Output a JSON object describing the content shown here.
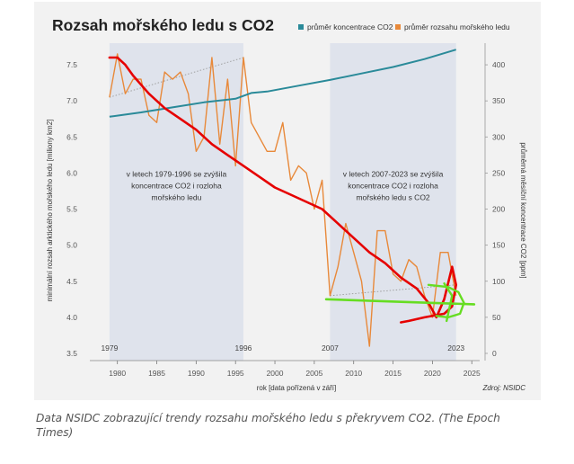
{
  "caption": "Data NSIDC zobrazující trendy rozsahu mořského ledu s překryvem CO2. (The Epoch Times)",
  "chart_data": {
    "type": "line",
    "title": "Rozsah mořského ledu s CO2",
    "xlabel": "rok [data pořízená v září]",
    "ylabel_left": "minimální rozsah arktického mořského ledu [miliony km2]",
    "ylabel_right": "průměrná měsíční koncentrace CO2 [ppm]",
    "source": "Zdroj: NSIDC",
    "xlim": [
      1976.5,
      2026
    ],
    "ylim_left": [
      3.4,
      7.8
    ],
    "ylim_right": [
      -10,
      430
    ],
    "x_ticks": [
      "1980",
      "1985",
      "1990",
      "1995",
      "2000",
      "2005",
      "2010",
      "2015",
      "2020",
      "2025"
    ],
    "y_ticks_left": [
      "3.5",
      "4.0",
      "4.5",
      "5.0",
      "5.5",
      "6.0",
      "6.5",
      "7.0",
      "7.5"
    ],
    "y_ticks_right": [
      "0",
      "50",
      "100",
      "150",
      "200",
      "250",
      "300",
      "350",
      "400"
    ],
    "legend": [
      {
        "name": "průměr koncentrace CO2",
        "color": "#2a8a99"
      },
      {
        "name": "průměr rozsahu mořského ledu",
        "color": "#e8893a"
      }
    ],
    "shaded_periods": [
      [
        1979,
        1996
      ],
      [
        2007,
        2023
      ]
    ],
    "period_labels": [
      "1979",
      "1996",
      "2007",
      "2023"
    ],
    "annotations": [
      {
        "x": 1987.5,
        "y": 5.95,
        "lines": [
          "v letech 1979-1996 se zvýšila",
          "koncentrace CO2 i rozloha",
          "mořského ledu"
        ]
      },
      {
        "x": 2015,
        "y": 5.95,
        "lines": [
          "v letech 2007-2023 se zvýšila",
          "koncentrace CO2 i rozloha",
          "mořského ledu s CO2"
        ]
      }
    ],
    "series": [
      {
        "name": "průměr rozsahu mořského ledu",
        "color": "#e8893a",
        "axis": "left",
        "x": [
          1979,
          1980,
          1981,
          1982,
          1983,
          1984,
          1985,
          1986,
          1987,
          1988,
          1989,
          1990,
          1991,
          1992,
          1993,
          1994,
          1995,
          1996,
          1997,
          1998,
          1999,
          2000,
          2001,
          2002,
          2003,
          2004,
          2005,
          2006,
          2007,
          2008,
          2009,
          2010,
          2011,
          2012,
          2013,
          2014,
          2015,
          2016,
          2017,
          2018,
          2019,
          2020,
          2021,
          2022,
          2023
        ],
        "values": [
          7.05,
          7.65,
          7.1,
          7.3,
          7.3,
          6.8,
          6.7,
          7.4,
          7.3,
          7.4,
          7.1,
          6.3,
          6.5,
          7.6,
          6.4,
          7.3,
          6.1,
          7.6,
          6.7,
          6.5,
          6.3,
          6.3,
          6.7,
          5.9,
          6.1,
          6.0,
          5.5,
          5.9,
          4.3,
          4.7,
          5.3,
          4.9,
          4.5,
          3.6,
          5.2,
          5.2,
          4.6,
          4.5,
          4.8,
          4.7,
          4.3,
          4.0,
          4.9,
          4.9,
          4.3
        ]
      },
      {
        "name": "průměr koncentrace CO2",
        "color": "#2a8a99",
        "axis": "right",
        "x": [
          1979,
          1983,
          1987,
          1991,
          1995,
          1997,
          1999,
          2003,
          2007,
          2011,
          2015,
          2019,
          2023
        ],
        "values": [
          328,
          334,
          341,
          348,
          353,
          361,
          363,
          371,
          379,
          388,
          397,
          408,
          421
        ]
      }
    ],
    "dotted_trends": [
      {
        "x": [
          1979,
          1996
        ],
        "y_left": [
          7.05,
          7.6
        ]
      },
      {
        "x": [
          2007,
          2023
        ],
        "y_left": [
          4.3,
          4.45
        ]
      }
    ],
    "hand_drawn_red_trend": {
      "color": "#e60000",
      "x": [
        1979,
        1980,
        1981,
        1982,
        1984,
        1986,
        1988,
        1990,
        1992,
        1994,
        1996,
        1998,
        2000,
        2002,
        2004,
        2006,
        2008,
        2010,
        2012,
        2014,
        2016,
        2018,
        2019.5,
        2020.5,
        2021.5,
        2022.5,
        2023,
        2022.5,
        2021.5,
        2019,
        2017,
        2016
      ],
      "values": [
        7.6,
        7.6,
        7.5,
        7.35,
        7.1,
        6.9,
        6.75,
        6.6,
        6.4,
        6.25,
        6.1,
        5.95,
        5.8,
        5.7,
        5.6,
        5.5,
        5.3,
        5.1,
        4.9,
        4.75,
        4.55,
        4.4,
        4.2,
        4.0,
        4.25,
        4.7,
        4.45,
        4.15,
        4.05,
        4.0,
        3.95,
        3.93
      ]
    },
    "hand_drawn_green_marks": {
      "color": "#66dd22",
      "line": {
        "x": [
          2006.5,
          2025.3
        ],
        "y_left": [
          4.25,
          4.18
        ]
      },
      "curve": {
        "x": [
          2019.5,
          2022,
          2023.3,
          2024,
          2023.5,
          2022,
          2020.5
        ],
        "y_left": [
          4.45,
          4.42,
          4.35,
          4.2,
          4.05,
          4.0,
          4.02
        ]
      },
      "check": {
        "x": [
          2021.5,
          2022.5,
          2021.8
        ],
        "y_left": [
          4.47,
          4.3,
          3.95
        ]
      }
    }
  }
}
